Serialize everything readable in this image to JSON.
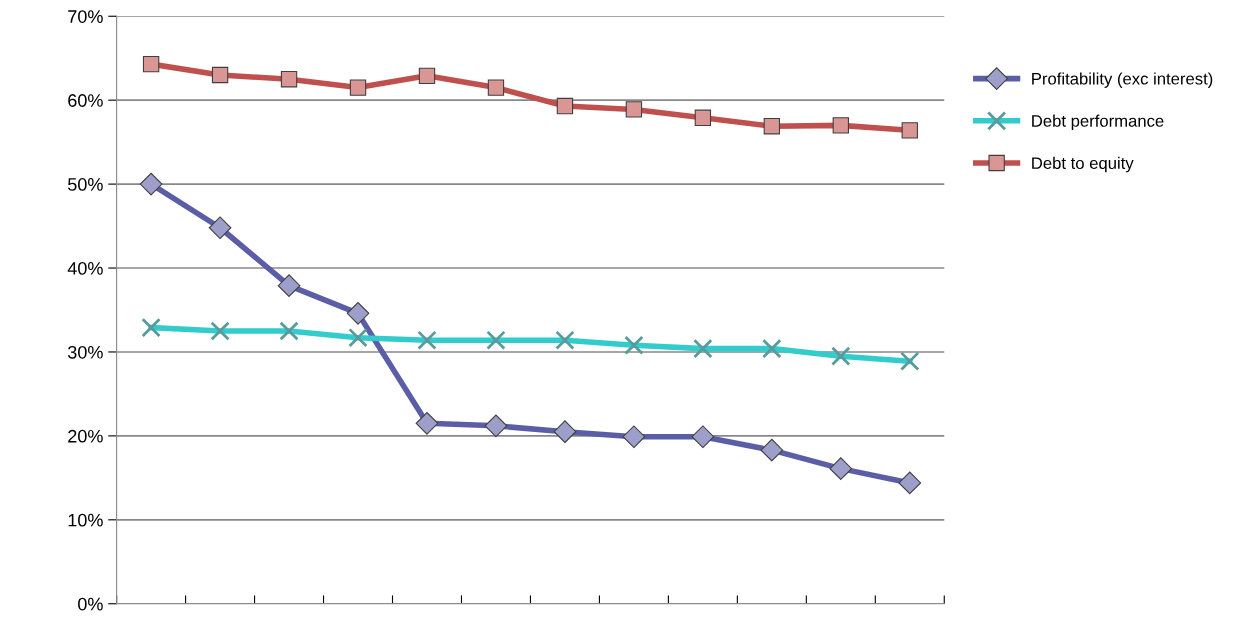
{
  "chart_data": {
    "type": "line",
    "categories": [
      null,
      null,
      null,
      null,
      null,
      null,
      null,
      null,
      null,
      null,
      null,
      null
    ],
    "series": [
      {
        "name": "Profitability (exc interest)",
        "color": "#5b5ea6",
        "marker": "diamond",
        "values": [
          50.0,
          44.8,
          37.9,
          34.6,
          21.5,
          21.2,
          20.5,
          19.9,
          19.9,
          18.3,
          16.1,
          14.4
        ]
      },
      {
        "name": "Debt performance",
        "color": "#33cccc",
        "marker": "cross",
        "values": [
          32.9,
          32.5,
          32.5,
          31.7,
          31.4,
          31.4,
          31.4,
          30.8,
          30.4,
          30.4,
          29.5,
          28.9
        ]
      },
      {
        "name": "Debt to equity",
        "color": "#c0504d",
        "marker": "square",
        "values": [
          64.3,
          63.0,
          62.5,
          61.5,
          62.9,
          61.5,
          59.3,
          58.9,
          57.9,
          56.9,
          57.0,
          56.4
        ]
      }
    ],
    "ylim": [
      0,
      70
    ],
    "yticks": [
      {
        "value": 0,
        "label": "0%"
      },
      {
        "value": 10,
        "label": "10%"
      },
      {
        "value": 20,
        "label": "20%"
      },
      {
        "value": 30,
        "label": "30%"
      },
      {
        "value": 40,
        "label": "40%"
      },
      {
        "value": 50,
        "label": "50%"
      },
      {
        "value": 60,
        "label": "60%"
      },
      {
        "value": 70,
        "label": "70%"
      }
    ],
    "grid": "y",
    "legend": "right",
    "line_style": "solid"
  }
}
